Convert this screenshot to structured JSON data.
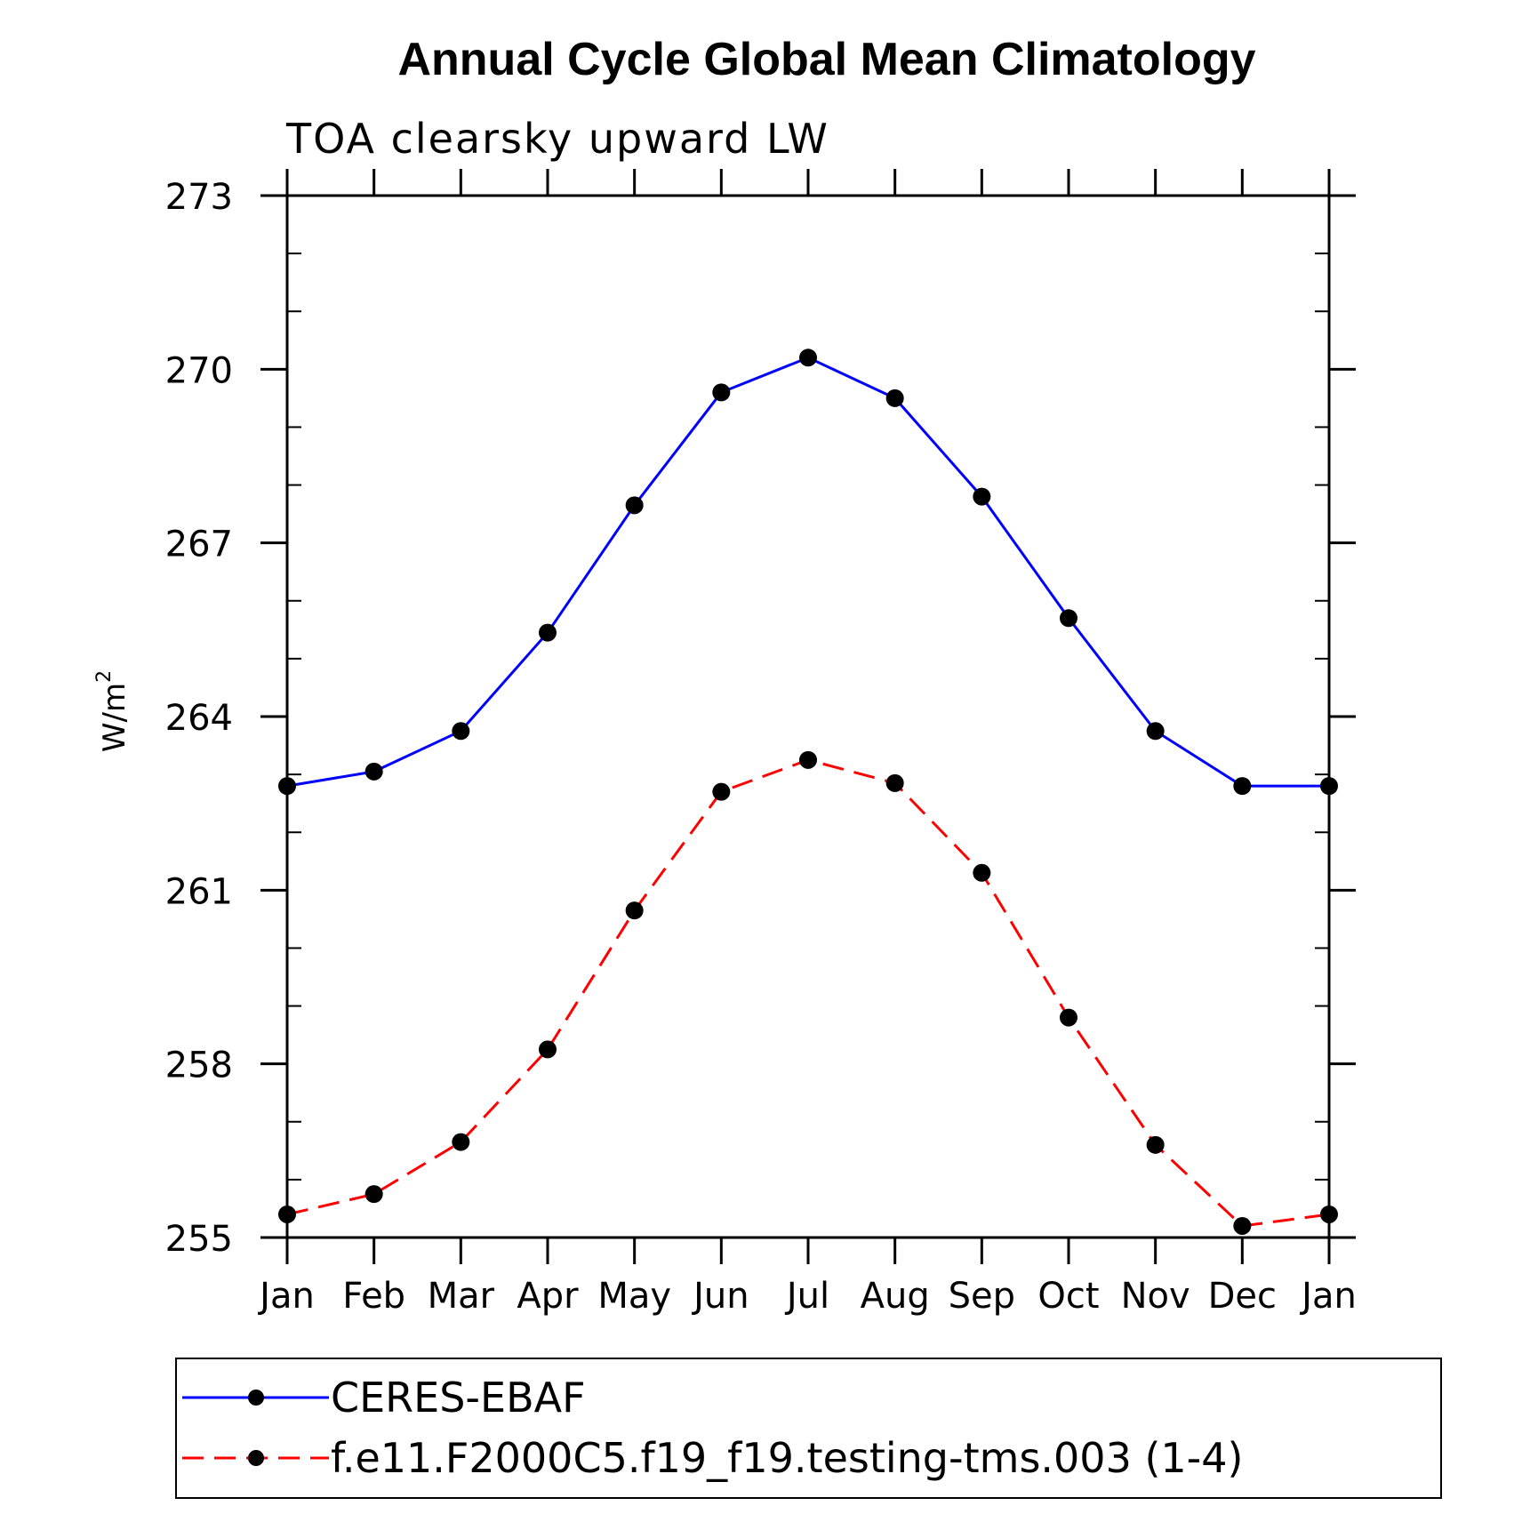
{
  "chart_data": {
    "type": "line",
    "title": "Annual Cycle Global Mean Climatology",
    "subtitle": "TOA clearsky upward LW",
    "ylabel": "W/m",
    "ylabel_superscript": "2",
    "xlabel": "",
    "ylim": [
      255,
      273
    ],
    "yticks": [
      255,
      258,
      261,
      264,
      267,
      270,
      273
    ],
    "yminor_step": 1,
    "categories": [
      "Jan",
      "Feb",
      "Mar",
      "Apr",
      "May",
      "Jun",
      "Jul",
      "Aug",
      "Sep",
      "Oct",
      "Nov",
      "Dec",
      "Jan"
    ],
    "series": [
      {
        "name": "CERES-EBAF",
        "color": "#0000ff",
        "dash": "solid",
        "values": [
          262.8,
          263.05,
          263.75,
          265.45,
          267.65,
          269.6,
          270.2,
          269.5,
          267.8,
          265.7,
          263.75,
          262.8,
          262.8
        ]
      },
      {
        "name": "f.e11.F2000C5.f19_f19.testing-tms.003 (1-4)",
        "color": "#ff0000",
        "dash": "dashed",
        "values": [
          255.4,
          255.75,
          256.65,
          258.25,
          260.65,
          262.7,
          263.25,
          262.85,
          261.3,
          258.8,
          256.6,
          255.2,
          255.4
        ]
      }
    ],
    "marker_color": "#000000",
    "legend_position": "bottom"
  }
}
